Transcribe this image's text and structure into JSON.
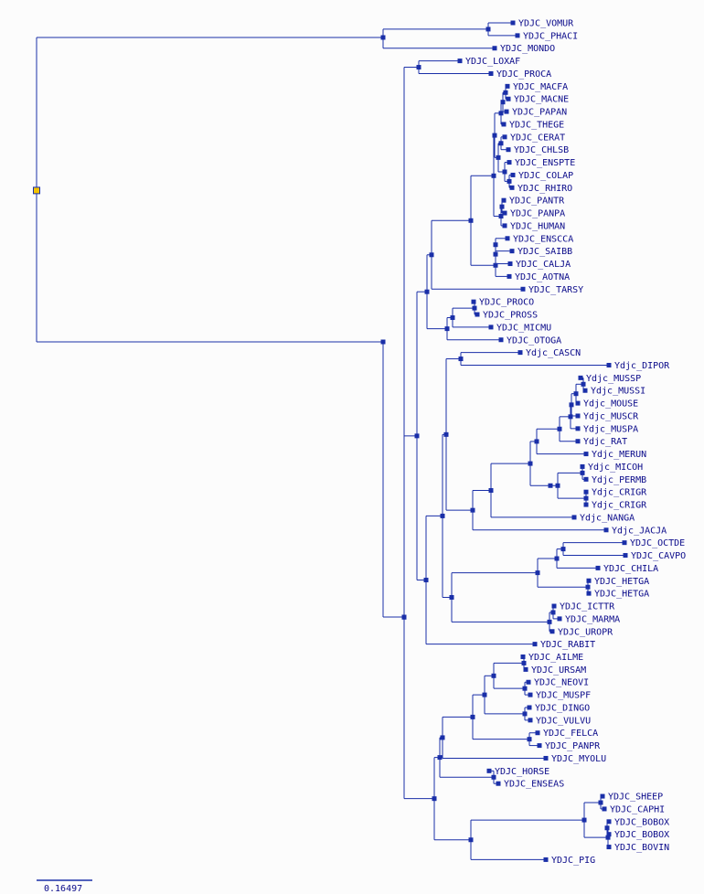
{
  "colors": {
    "line": "#1a2fa8",
    "node": "#1a2fa8",
    "label": "#0a0a8a",
    "root_fill": "#f2c200",
    "background": "#fcfcfc"
  },
  "tree": {
    "taxa": [
      "YDJC_VOMUR",
      "YDJC_PHACI",
      "YDJC_MONDO",
      "YDJC_LOXAF",
      "YDJC_PROCA",
      "YDJC_MACFA",
      "YDJC_MACNE",
      "YDJC_PAPAN",
      "YDJC_THEGE",
      "YDJC_CERAT",
      "YDJC_CHLSB",
      "YDJC_ENSPTE",
      "YDJC_COLAP",
      "YDJC_RHIRO",
      "YDJC_PANTR",
      "YDJC_PANPA",
      "YDJC_HUMAN",
      "YDJC_ENSCCA",
      "YDJC_SAIBB",
      "YDJC_CALJA",
      "YDJC_AOTNA",
      "YDJC_TARSY",
      "YDJC_PROCO",
      "YDJC_PROSS",
      "YDJC_MICMU",
      "YDJC_OTOGA",
      "Ydjc_CASCN",
      "Ydjc_DIPOR",
      "Ydjc_MUSSP",
      "Ydjc_MUSSI",
      "Ydjc_MOUSE",
      "Ydjc_MUSCR",
      "Ydjc_MUSPA",
      "Ydjc_RAT",
      "Ydjc_MERUN",
      "Ydjc_MICOH",
      "Ydjc_PERMB",
      "Ydjc_CRIGR",
      "Ydjc_CRIGR",
      "Ydjc_NANGA",
      "Ydjc_JACJA",
      "YDJC_OCTDE",
      "YDJC_CAVPO",
      "YDJC_CHILA",
      "YDJC_HETGA",
      "YDJC_HETGA",
      "YDJC_ICTTR",
      "YDJC_MARMA",
      "YDJC_UROPR",
      "YDJC_RABIT",
      "YDJC_AILME",
      "YDJC_URSAM",
      "YDJC_NEOVI",
      "YDJC_MUSPF",
      "YDJC_DINGO",
      "YDJC_VULVU",
      "YDJC_FELCA",
      "YDJC_PANPR",
      "YDJC_MYOLU",
      "YDJC_HORSE",
      "YDJC_ENSEAS",
      "YDJC_SHEEP",
      "YDJC_CAPHI",
      "YDJC_BOBOX",
      "YDJC_BOBOX",
      "YDJC_BOVIN",
      "YDJC_PIG"
    ]
  },
  "scale_bar": {
    "label": "0.16497"
  }
}
